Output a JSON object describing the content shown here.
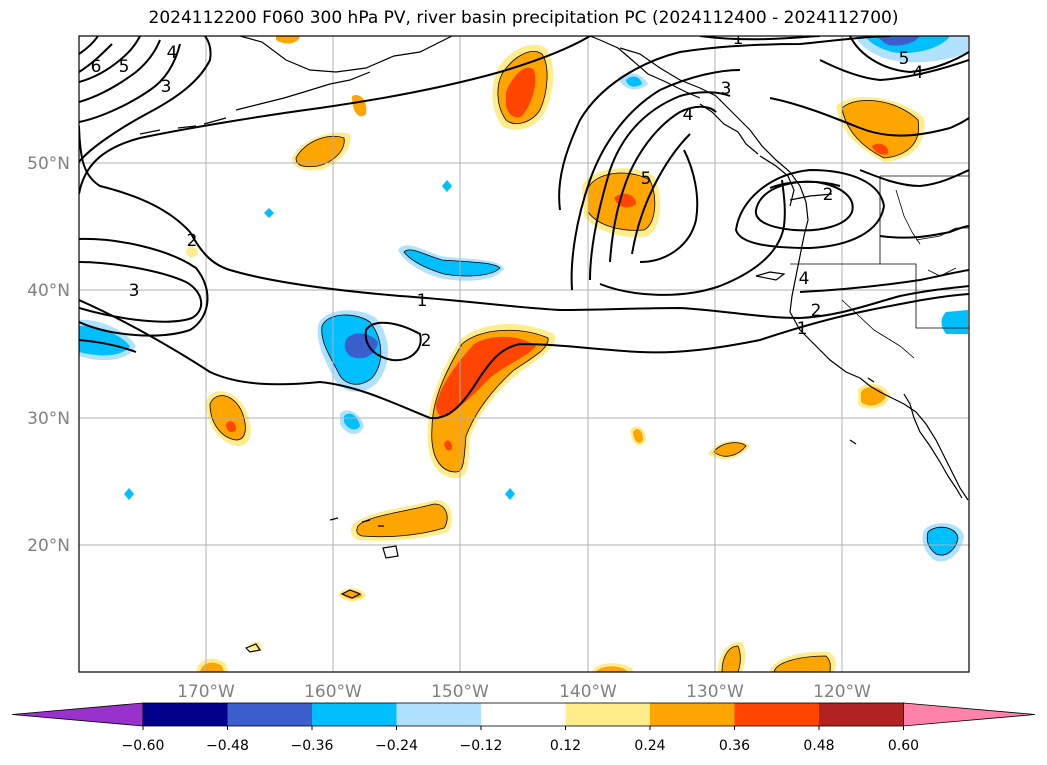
{
  "title": "2024112200 F060 300 hPa PV, river basin precipitation PC (2024112400 - 2024112700)",
  "map": {
    "lat_labels": [
      "50°N",
      "40°N",
      "30°N",
      "20°N"
    ],
    "lon_labels": [
      "170°W",
      "160°W",
      "150°W",
      "140°W",
      "130°W",
      "120°W"
    ],
    "contour_labels": [
      "6",
      "5",
      "4",
      "3",
      "2",
      "3",
      "1",
      "2",
      "1",
      "3",
      "4",
      "5",
      "2",
      "4",
      "2",
      "1",
      "5",
      "4"
    ]
  },
  "colorbar": {
    "ticks": [
      "−0.60",
      "−0.48",
      "−0.36",
      "−0.24",
      "−0.12",
      "0.12",
      "0.24",
      "0.36",
      "0.48",
      "0.60"
    ],
    "colors": [
      "#9932cc",
      "#00008b",
      "#3a5fcd",
      "#00bfff",
      "#b0e2ff",
      "#ffffff",
      "#ffec8b",
      "#ffa500",
      "#ff4500",
      "#b22222",
      "#ff82ab"
    ]
  }
}
